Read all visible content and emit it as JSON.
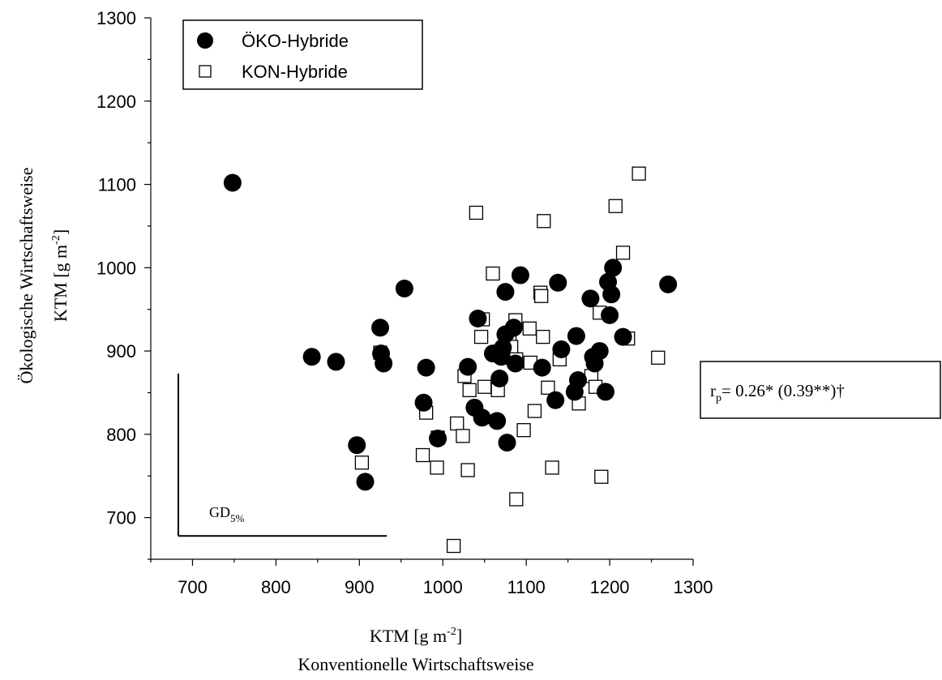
{
  "chart_data": {
    "type": "scatter",
    "x_axis": {
      "label_lines": [
        "KTM [g m",
        "Konventionelle Wirtschaftsweise"
      ],
      "label_unit_base": "KTM [g m",
      "label_unit_exp": "-2",
      "label_unit_close": "]",
      "label_sub": "Konventionelle Wirtschaftsweise",
      "range": [
        650,
        1300
      ],
      "ticks": [
        "700",
        "800",
        "900",
        "1000",
        "1100",
        "1200",
        "1300"
      ]
    },
    "y_axis": {
      "label_main": "Ökologische Wirtschaftsweise",
      "label_unit_base": "KTM [g m",
      "label_unit_exp": "-2",
      "label_unit_close": "]",
      "range": [
        650,
        1300
      ],
      "ticks": [
        "700",
        "800",
        "900",
        "1000",
        "1100",
        "1200",
        "1300"
      ]
    },
    "legend": {
      "placement": "top-left",
      "entries": [
        {
          "name": "ÖKO-Hybride",
          "marker": "filled-circle"
        },
        {
          "name": "KON-Hybride",
          "marker": "open-square"
        }
      ]
    },
    "annotation": {
      "r_label": "r",
      "r_sub": "p",
      "r_text": "= 0.26*  (0.39**)†"
    },
    "gd_bar": {
      "label": "GD",
      "label_sub": "5%",
      "lsd_value": 250
    },
    "series": [
      {
        "name": "ÖKO-Hybride",
        "color": "#000000",
        "points": [
          [
            748,
            1102
          ],
          [
            843,
            893
          ],
          [
            872,
            887
          ],
          [
            925,
            928
          ],
          [
            926,
            897
          ],
          [
            929,
            885
          ],
          [
            897,
            787
          ],
          [
            907,
            743
          ],
          [
            954,
            975
          ],
          [
            977,
            838
          ],
          [
            980,
            880
          ],
          [
            994,
            795
          ],
          [
            1030,
            881
          ],
          [
            1038,
            832
          ],
          [
            1042,
            939
          ],
          [
            1047,
            820
          ],
          [
            1060,
            897
          ],
          [
            1065,
            816
          ],
          [
            1068,
            867
          ],
          [
            1070,
            893
          ],
          [
            1072,
            904
          ],
          [
            1075,
            971
          ],
          [
            1075,
            920
          ],
          [
            1077,
            790
          ],
          [
            1085,
            928
          ],
          [
            1087,
            885
          ],
          [
            1093,
            991
          ],
          [
            1119,
            880
          ],
          [
            1135,
            841
          ],
          [
            1138,
            982
          ],
          [
            1142,
            902
          ],
          [
            1158,
            851
          ],
          [
            1160,
            918
          ],
          [
            1162,
            865
          ],
          [
            1177,
            963
          ],
          [
            1180,
            893
          ],
          [
            1182,
            885
          ],
          [
            1188,
            900
          ],
          [
            1195,
            851
          ],
          [
            1198,
            983
          ],
          [
            1200,
            943
          ],
          [
            1202,
            968
          ],
          [
            1204,
            1000
          ],
          [
            1216,
            917
          ],
          [
            1270,
            980
          ]
        ]
      },
      {
        "name": "KON-Hybride",
        "color": "#000000",
        "points": [
          [
            925,
            898
          ],
          [
            903,
            766
          ],
          [
            976,
            775
          ],
          [
            980,
            826
          ],
          [
            993,
            760
          ],
          [
            994,
            796
          ],
          [
            1013,
            666
          ],
          [
            1017,
            813
          ],
          [
            1024,
            798
          ],
          [
            1026,
            870
          ],
          [
            1030,
            757
          ],
          [
            1032,
            853
          ],
          [
            1040,
            1066
          ],
          [
            1046,
            917
          ],
          [
            1048,
            938
          ],
          [
            1050,
            857
          ],
          [
            1060,
            993
          ],
          [
            1066,
            853
          ],
          [
            1068,
            899
          ],
          [
            1075,
            892
          ],
          [
            1080,
            910
          ],
          [
            1082,
            905
          ],
          [
            1087,
            937
          ],
          [
            1088,
            722
          ],
          [
            1088,
            890
          ],
          [
            1097,
            805
          ],
          [
            1104,
            927
          ],
          [
            1105,
            886
          ],
          [
            1110,
            828
          ],
          [
            1117,
            970
          ],
          [
            1118,
            966
          ],
          [
            1120,
            917
          ],
          [
            1121,
            1056
          ],
          [
            1126,
            856
          ],
          [
            1131,
            760
          ],
          [
            1140,
            890
          ],
          [
            1163,
            837
          ],
          [
            1178,
            870
          ],
          [
            1183,
            857
          ],
          [
            1188,
            946
          ],
          [
            1190,
            749
          ],
          [
            1207,
            1074
          ],
          [
            1216,
            1018
          ],
          [
            1222,
            915
          ],
          [
            1235,
            1113
          ],
          [
            1258,
            892
          ]
        ]
      }
    ]
  }
}
